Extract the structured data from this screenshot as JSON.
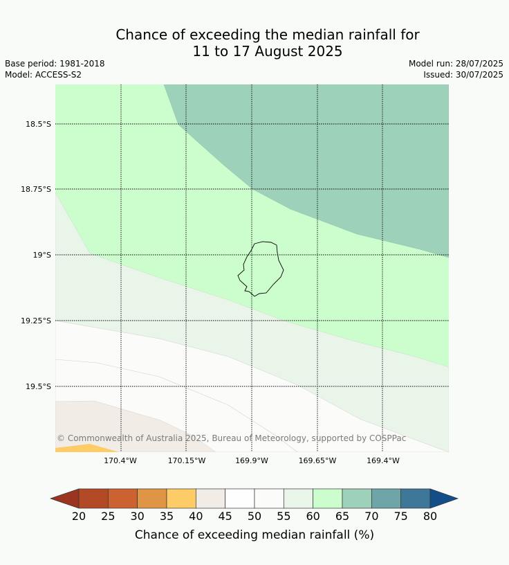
{
  "title": {
    "line1": "Chance of exceeding the median rainfall for",
    "line2": "11 to 17 August 2025"
  },
  "info": {
    "base_period": "Base period: 1981-2018",
    "model": "Model: ACCESS-S2",
    "model_run": "Model run: 28/07/2025",
    "issued": "Issued: 30/07/2025"
  },
  "map": {
    "lon_labels": [
      "170.4°W",
      "170.15°W",
      "169.9°W",
      "169.65°W",
      "169.4°W"
    ],
    "lat_labels": [
      "18.5°S",
      "18.75°S",
      "19°S",
      "19.25°S",
      "19.5°S"
    ],
    "copyright": "© Commonwealth of Australia 2025, Bureau of Meteorology, supported by COSPPac",
    "feature": "island-outline"
  },
  "legend": {
    "label": "Chance of exceeding median rainfall (%)",
    "ticks": [
      "20",
      "25",
      "30",
      "35",
      "40",
      "45",
      "50",
      "55",
      "60",
      "65",
      "70",
      "75",
      "80"
    ],
    "colors": [
      "#9b3520",
      "#b34a26",
      "#cc6232",
      "#e09546",
      "#fdcc66",
      "#f1ece6",
      "#fefefe",
      "#fbfcfa",
      "#eaf5e9",
      "#ccfdcc",
      "#9dd1b9",
      "#6fa5a8",
      "#3f7799",
      "#144e88"
    ],
    "extend_low_color": "#9b3520",
    "extend_high_color": "#144e88"
  }
}
